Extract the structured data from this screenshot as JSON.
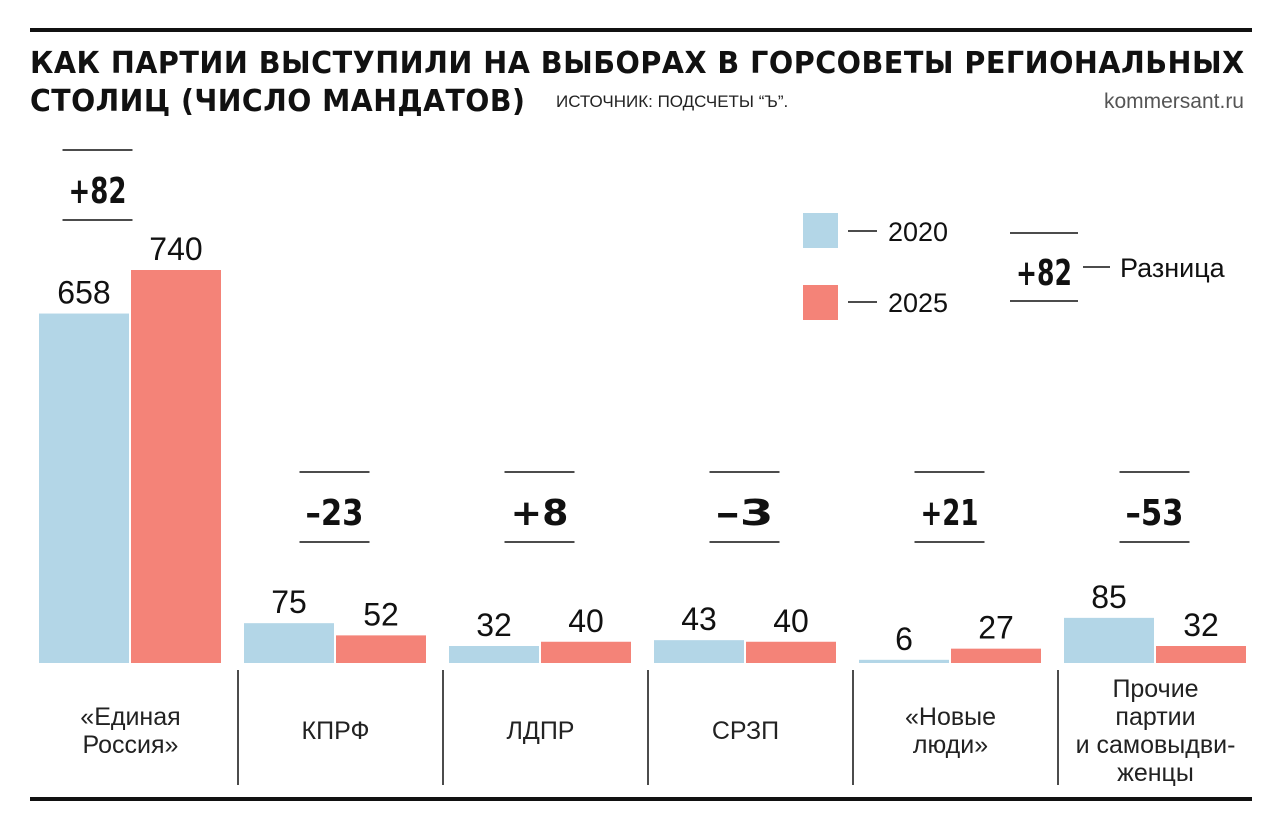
{
  "header": {
    "title_line1": "КАК ПАРТИИ ВЫСТУПИЛИ НА ВЫБОРАХ В ГОРСОВЕТЫ РЕГИОНАЛЬНЫХ",
    "title_line2": "СТОЛИЦ (ЧИСЛО МАНДАТОВ)",
    "source": "ИСТОЧНИК: ПОДСЧЕТЫ “Ъ”.",
    "site": "kommersant.ru"
  },
  "colors": {
    "series_2020": "#b3d6e7",
    "series_2025": "#f48378",
    "ink": "#111111"
  },
  "chart_data": {
    "type": "bar",
    "title": "КАК ПАРТИИ ВЫСТУПИЛИ НА ВЫБОРАХ В ГОРСОВЕТЫ РЕГИОНАЛЬНЫХ СТОЛИЦ (ЧИСЛО МАНДАТОВ)",
    "categories": [
      [
        "«Единая",
        "Россия»"
      ],
      [
        "КПРФ"
      ],
      [
        "ЛДПР"
      ],
      [
        "СРЗП"
      ],
      [
        "«Новые",
        "люди»"
      ],
      [
        "Прочие",
        "партии",
        "и самовыдви-",
        "женцы"
      ]
    ],
    "series": [
      {
        "name": "2020",
        "values": [
          658,
          75,
          32,
          43,
          6,
          85
        ]
      },
      {
        "name": "2025",
        "values": [
          740,
          52,
          40,
          40,
          27,
          32
        ]
      }
    ],
    "differences": [
      "+82",
      "–23",
      "+8",
      "–3",
      "+21",
      "–53"
    ],
    "ylim": [
      0,
      740
    ],
    "legend": {
      "items": [
        "2020",
        "2025"
      ],
      "diff_sample": "+82",
      "diff_label": "Разница",
      "placement": "top-right"
    }
  }
}
